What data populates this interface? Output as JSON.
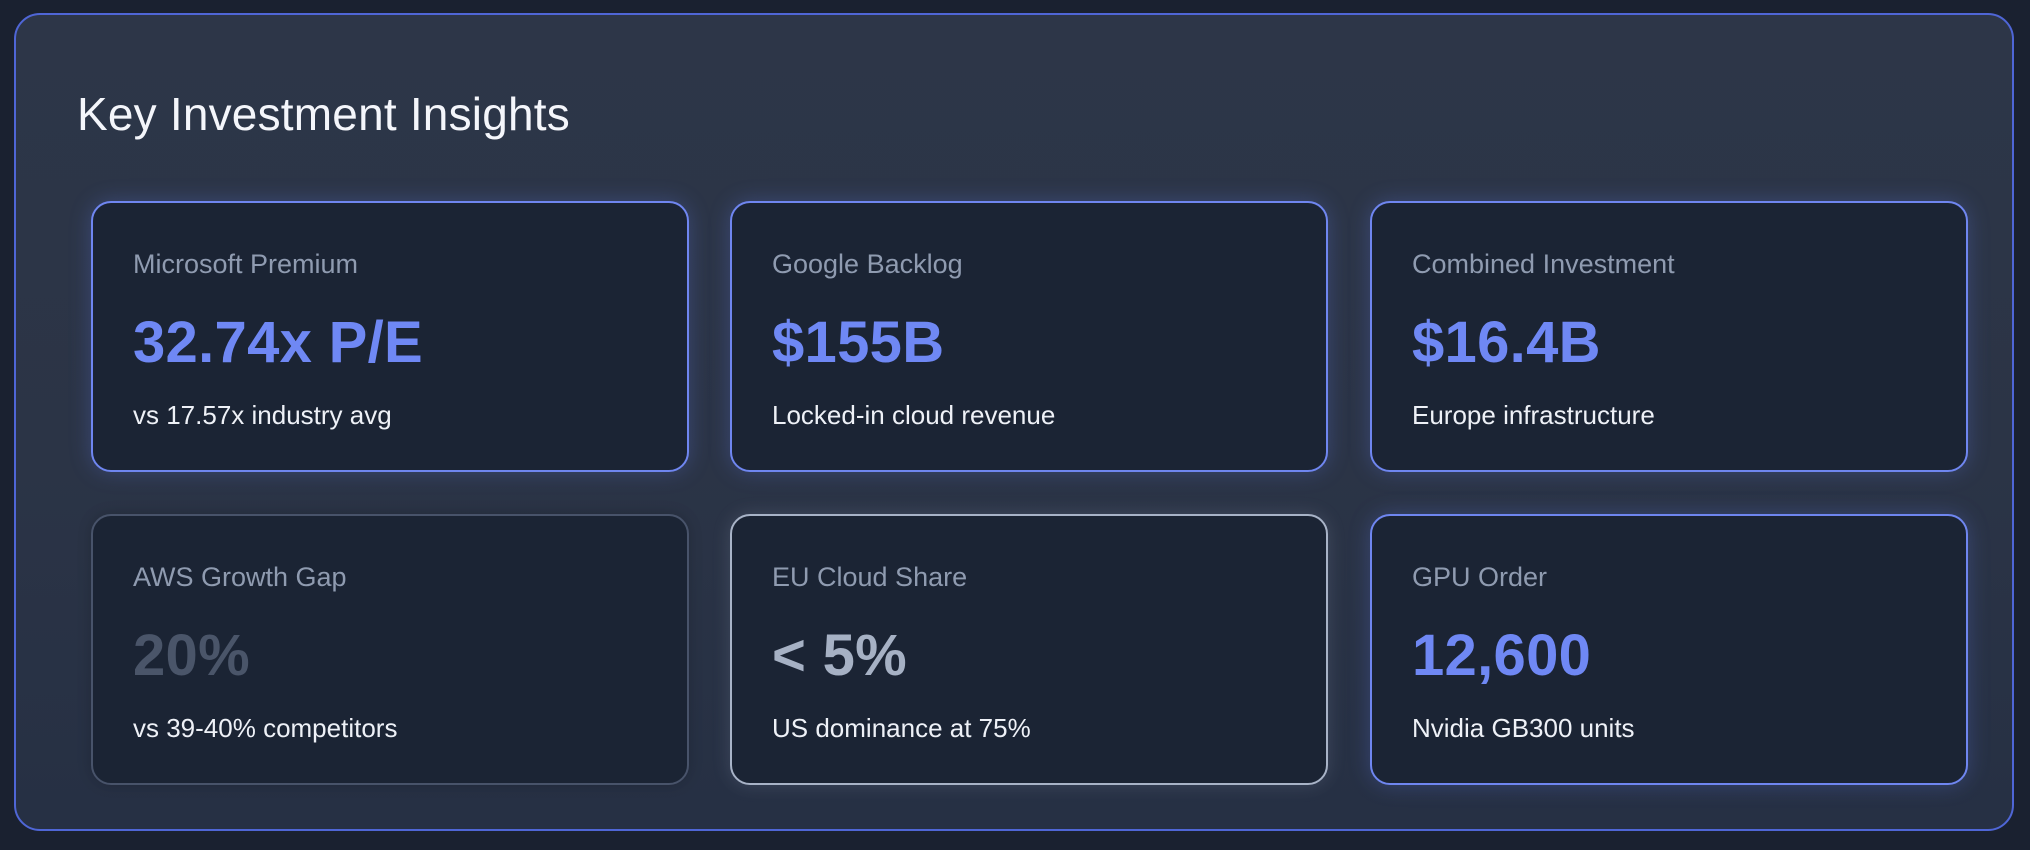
{
  "section": {
    "title": "Key Investment Insights"
  },
  "cards": [
    {
      "label": "Microsoft Premium",
      "value": "32.74x P/E",
      "sub": "vs 17.57x industry avg",
      "accent": "#6f88f4"
    },
    {
      "label": "Google Backlog",
      "value": "$155B",
      "sub": "Locked-in cloud revenue",
      "accent": "#6f88f4"
    },
    {
      "label": "Combined Investment",
      "value": "$16.4B",
      "sub": "Europe infrastructure",
      "accent": "#6f88f4"
    },
    {
      "label": "AWS Growth Gap",
      "value": "20%",
      "sub": "vs 39-40% competitors",
      "accent": "#4a5569"
    },
    {
      "label": "EU Cloud Share",
      "value": "< 5%",
      "sub": "US dominance at 75%",
      "accent": "#a6b1c4"
    },
    {
      "label": "GPU Order",
      "value": "12,600",
      "sub": "Nvidia GB300 units",
      "accent": "#6f88f4"
    }
  ]
}
